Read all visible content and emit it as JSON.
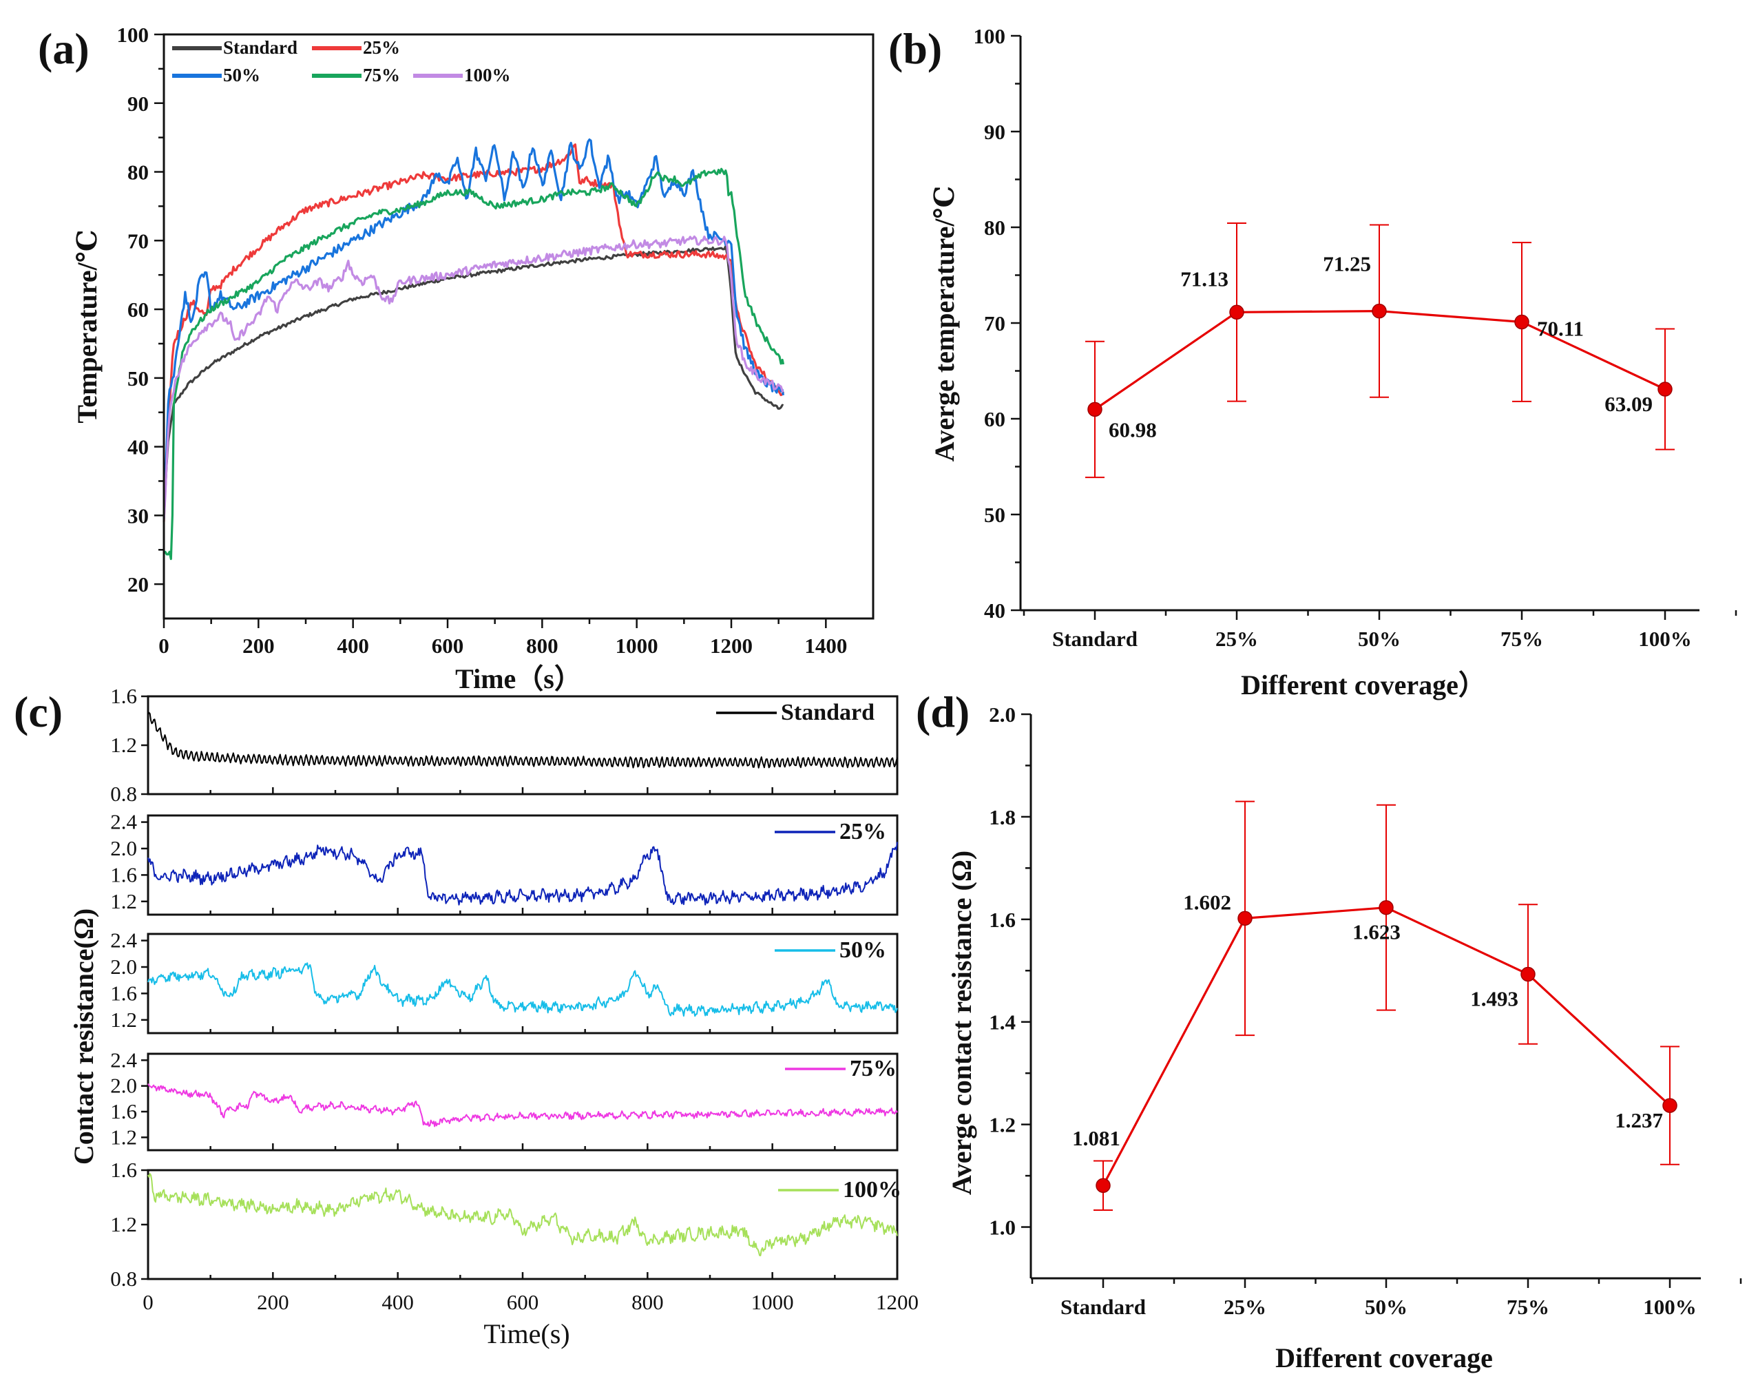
{
  "panels": {
    "a": "(a)",
    "b": "(b)",
    "c": "(c)",
    "d": "(d)"
  },
  "colors": {
    "Standard": "#404040",
    "25%": "#ee3a3a",
    "50%": "#1874dd",
    "75%": "#18a55c",
    "100%": "#c28ae4",
    "red_marker": "#e60000",
    "c_standard": "#000000",
    "c_25": "#0d23b8",
    "c_50": "#17bde8",
    "c_75": "#ee38e2",
    "c_100": "#a6e05a"
  },
  "chart_data": [
    {
      "id": "a",
      "type": "line",
      "xlabel": "Time（s）",
      "ylabel": "Temperature/℃",
      "xlim": [
        0,
        1500
      ],
      "ylim": [
        15,
        100
      ],
      "xticks": [
        0,
        200,
        400,
        600,
        800,
        1000,
        1200,
        1400
      ],
      "yticks": [
        20,
        30,
        40,
        50,
        60,
        70,
        80,
        90,
        100
      ],
      "legend": [
        "Standard",
        "25%",
        "50%",
        "75%",
        "100%"
      ],
      "series": [
        {
          "name": "Standard",
          "x": [
            0,
            8,
            20,
            50,
            100,
            200,
            300,
            400,
            500,
            600,
            700,
            800,
            900,
            1000,
            1100,
            1190,
            1200,
            1210,
            1250,
            1300,
            1310
          ],
          "y": [
            30,
            40,
            46,
            49,
            52,
            56,
            59,
            61.5,
            63,
            64.5,
            65.5,
            66.5,
            67.3,
            68,
            68.5,
            69,
            62,
            53,
            48,
            45.5,
            46
          ]
        },
        {
          "name": "25%",
          "x": [
            0,
            10,
            20,
            40,
            60,
            90,
            100,
            120,
            150,
            200,
            250,
            300,
            400,
            500,
            550,
            600,
            650,
            700,
            750,
            800,
            850,
            870,
            880,
            890,
            900,
            950,
            970,
            980,
            1000,
            1100,
            1150,
            1200,
            1210,
            1250,
            1300,
            1310
          ],
          "y": [
            29,
            44,
            55,
            58,
            61,
            59,
            63,
            63.5,
            66,
            69,
            72,
            74.5,
            76.5,
            78.5,
            79.5,
            79,
            79.5,
            79.8,
            80,
            80.5,
            82,
            84,
            78,
            79,
            78.5,
            78,
            70,
            68,
            68,
            68,
            68,
            67.5,
            60,
            52,
            48,
            48
          ]
        },
        {
          "name": "50%",
          "x": [
            0,
            10,
            20,
            35,
            45,
            60,
            75,
            90,
            100,
            120,
            150,
            200,
            250,
            300,
            350,
            400,
            450,
            500,
            550,
            580,
            600,
            620,
            640,
            660,
            680,
            700,
            720,
            740,
            760,
            780,
            800,
            820,
            840,
            860,
            880,
            900,
            920,
            940,
            960,
            980,
            1000,
            1020,
            1040,
            1060,
            1080,
            1100,
            1120,
            1150,
            1190,
            1200,
            1210,
            1230,
            1260,
            1300,
            1310
          ],
          "y": [
            30,
            48,
            50,
            58,
            62,
            58,
            64,
            65,
            60,
            62,
            60,
            62,
            64,
            66,
            68,
            70,
            72,
            74,
            76,
            80,
            78,
            82,
            76,
            83,
            79,
            84,
            76,
            83,
            77,
            84,
            78,
            83,
            76,
            84,
            80,
            85,
            78,
            82,
            76,
            77,
            75,
            78,
            82,
            76,
            79,
            77,
            80,
            71,
            70,
            70,
            60,
            54,
            50,
            48,
            47.5
          ]
        },
        {
          "name": "75%",
          "x": [
            0,
            10,
            15,
            18,
            20,
            40,
            60,
            100,
            150,
            200,
            250,
            300,
            350,
            400,
            450,
            500,
            550,
            600,
            650,
            700,
            750,
            800,
            850,
            900,
            950,
            1000,
            1020,
            1040,
            1060,
            1080,
            1100,
            1150,
            1180,
            1190,
            1195,
            1200,
            1210,
            1230,
            1260,
            1300,
            1310
          ],
          "y": [
            24.5,
            24.5,
            24,
            30,
            46,
            54,
            57,
            60,
            62,
            64,
            67,
            69,
            71,
            72.5,
            74,
            74.5,
            75.5,
            77,
            77,
            75,
            75.5,
            76,
            77,
            77,
            78,
            75,
            77,
            80,
            79,
            79,
            78,
            80,
            80,
            80,
            76,
            77,
            72,
            62,
            57,
            53,
            52
          ]
        },
        {
          "name": "100%",
          "x": [
            0,
            10,
            25,
            50,
            80,
            100,
            120,
            140,
            150,
            170,
            200,
            220,
            240,
            260,
            280,
            300,
            330,
            350,
            380,
            390,
            400,
            420,
            440,
            460,
            480,
            500,
            550,
            600,
            700,
            800,
            900,
            1000,
            1050,
            1100,
            1150,
            1190,
            1200,
            1210,
            1230,
            1260,
            1300,
            1310
          ],
          "y": [
            29,
            44,
            50,
            54,
            57,
            58,
            59,
            58,
            55,
            57,
            59,
            62,
            60,
            63,
            64,
            63,
            64,
            63,
            65,
            67,
            65,
            64,
            65,
            62,
            61,
            64,
            64.5,
            65,
            66.5,
            67.5,
            68.5,
            69.5,
            69.5,
            70,
            70,
            70,
            64,
            56,
            52,
            50,
            48.5,
            48
          ]
        }
      ]
    },
    {
      "id": "b",
      "type": "line",
      "xlabel": "Different coverage）",
      "ylabel": "Averge  temperature/℃",
      "categories": [
        "Standard",
        "25%",
        "50%",
        "75%",
        "100%"
      ],
      "values": [
        60.98,
        71.13,
        71.25,
        70.11,
        63.09
      ],
      "errors": [
        7.1,
        9.3,
        9.0,
        8.3,
        6.3
      ],
      "labels": [
        "60.98",
        "71.13",
        "71.25",
        "70.11",
        "63.09"
      ],
      "ylim": [
        40,
        100
      ],
      "yticks": [
        40,
        50,
        60,
        70,
        80,
        90,
        100
      ]
    },
    {
      "id": "c",
      "type": "line",
      "xlabel": "Time(s)",
      "ylabel": "Contact resistance(Ω)",
      "xlim": [
        0,
        1200
      ],
      "xticks": [
        0,
        200,
        400,
        600,
        800,
        1000,
        1200
      ],
      "subplots": [
        {
          "name": "Standard",
          "ylim": [
            0.8,
            1.6
          ],
          "yticks": [
            0.8,
            1.2,
            1.6
          ],
          "x": [
            0,
            10,
            20,
            30,
            40,
            60,
            100,
            200,
            400,
            600,
            800,
            1000,
            1200
          ],
          "y": [
            1.45,
            1.38,
            1.3,
            1.22,
            1.15,
            1.12,
            1.1,
            1.08,
            1.07,
            1.07,
            1.06,
            1.06,
            1.06
          ],
          "noise": 0.03
        },
        {
          "name": "25%",
          "ylim": [
            1.0,
            2.5
          ],
          "yticks": [
            1.2,
            1.6,
            2.0,
            2.4
          ],
          "x": [
            0,
            20,
            40,
            100,
            150,
            200,
            250,
            280,
            300,
            330,
            350,
            370,
            390,
            410,
            440,
            450,
            460,
            500,
            600,
            700,
            750,
            780,
            800,
            810,
            820,
            830,
            840,
            900,
            1000,
            1100,
            1150,
            1180,
            1200
          ],
          "y": [
            1.8,
            1.55,
            1.6,
            1.55,
            1.65,
            1.75,
            1.85,
            2.0,
            1.95,
            1.9,
            1.7,
            1.5,
            1.8,
            1.95,
            1.9,
            1.25,
            1.25,
            1.25,
            1.28,
            1.3,
            1.4,
            1.55,
            1.9,
            2.0,
            1.85,
            1.25,
            1.25,
            1.25,
            1.28,
            1.35,
            1.45,
            1.65,
            2.1
          ],
          "noise": 0.07
        },
        {
          "name": "50%",
          "ylim": [
            1.0,
            2.5
          ],
          "yticks": [
            1.2,
            1.6,
            2.0,
            2.4
          ],
          "x": [
            0,
            20,
            100,
            130,
            150,
            200,
            260,
            270,
            280,
            340,
            360,
            380,
            400,
            450,
            480,
            500,
            520,
            540,
            560,
            600,
            700,
            760,
            780,
            800,
            820,
            830,
            900,
            1000,
            1060,
            1090,
            1100,
            1110,
            1200
          ],
          "y": [
            1.75,
            1.85,
            1.9,
            1.55,
            1.85,
            1.9,
            2.0,
            1.55,
            1.5,
            1.6,
            2.0,
            1.7,
            1.5,
            1.5,
            1.8,
            1.6,
            1.55,
            1.85,
            1.4,
            1.4,
            1.4,
            1.55,
            1.95,
            1.6,
            1.7,
            1.35,
            1.35,
            1.4,
            1.5,
            1.8,
            1.5,
            1.4,
            1.4
          ],
          "noise": 0.06
        },
        {
          "name": "75%",
          "ylim": [
            1.0,
            2.5
          ],
          "yticks": [
            1.2,
            1.6,
            2.0,
            2.4
          ],
          "x": [
            0,
            50,
            100,
            120,
            130,
            160,
            170,
            200,
            230,
            240,
            250,
            300,
            400,
            430,
            440,
            450,
            500,
            600,
            800,
            1000,
            1200
          ],
          "y": [
            2.0,
            1.9,
            1.85,
            1.55,
            1.65,
            1.7,
            1.9,
            1.75,
            1.85,
            1.6,
            1.65,
            1.7,
            1.6,
            1.75,
            1.45,
            1.4,
            1.5,
            1.53,
            1.55,
            1.57,
            1.6
          ],
          "noise": 0.04
        },
        {
          "name": "100%",
          "ylim": [
            0.8,
            1.6
          ],
          "yticks": [
            0.8,
            1.2,
            1.6
          ],
          "x": [
            0,
            10,
            100,
            200,
            250,
            300,
            350,
            400,
            450,
            500,
            550,
            580,
            600,
            650,
            680,
            700,
            750,
            780,
            800,
            850,
            900,
            950,
            980,
            1000,
            1050,
            1100,
            1150,
            1200
          ],
          "y": [
            1.58,
            1.42,
            1.38,
            1.32,
            1.34,
            1.3,
            1.4,
            1.42,
            1.3,
            1.25,
            1.25,
            1.28,
            1.15,
            1.25,
            1.08,
            1.12,
            1.1,
            1.22,
            1.08,
            1.12,
            1.14,
            1.15,
            1.0,
            1.08,
            1.1,
            1.22,
            1.22,
            1.15
          ],
          "noise": 0.035
        }
      ]
    },
    {
      "id": "d",
      "type": "line",
      "xlabel": "Different coverage",
      "ylabel": "Averge contact resistance (Ω)",
      "categories": [
        "Standard",
        "25%",
        "50%",
        "75%",
        "100%"
      ],
      "values": [
        1.081,
        1.602,
        1.623,
        1.493,
        1.237
      ],
      "errors": [
        0.048,
        0.228,
        0.2,
        0.136,
        0.115
      ],
      "labels": [
        "1.081",
        "1.602",
        "1.623",
        "1.493",
        "1.237"
      ],
      "ylim": [
        0.9,
        2.0
      ],
      "yticks": [
        1.0,
        1.2,
        1.4,
        1.6,
        1.8,
        2.0
      ]
    }
  ]
}
